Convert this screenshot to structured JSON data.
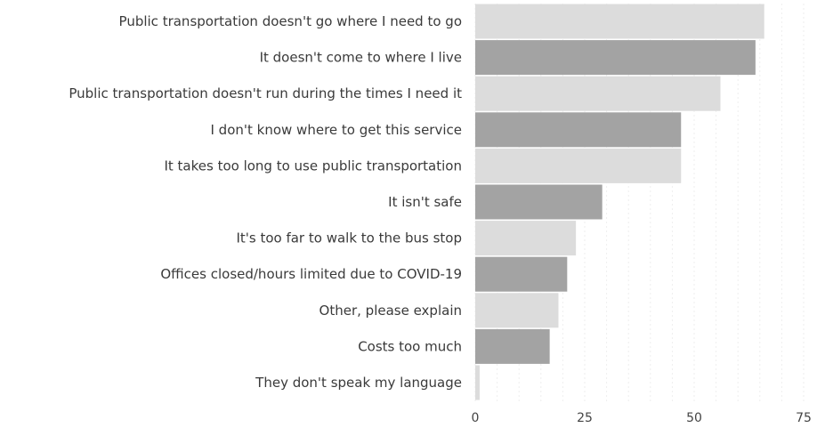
{
  "chart_data": {
    "type": "bar",
    "orientation": "horizontal",
    "categories": [
      "Public transportation doesn't go where I  need to go",
      "It doesn't come to where I live",
      "Public transportation doesn't run during the times I need it",
      "I don't know where to get this service",
      "It takes too long to use public transportation",
      "It isn't safe",
      "It's too far to walk to the bus stop",
      "Offices closed/hours limited due to COVID-19",
      "Other, please explain",
      "Costs too much",
      "They don't speak my language"
    ],
    "values": [
      66,
      64,
      56,
      47,
      47,
      29,
      23,
      21,
      19,
      17,
      1
    ],
    "title": "",
    "xlabel": "",
    "ylabel": "",
    "xlim": [
      0,
      78
    ],
    "xticks": [
      "0",
      "25",
      "50",
      "75"
    ],
    "grid": "vertical",
    "colors": {
      "bar_light": "#dcdcdc",
      "bar_dark": "#a3a3a3",
      "grid": "#eeeeee"
    }
  }
}
